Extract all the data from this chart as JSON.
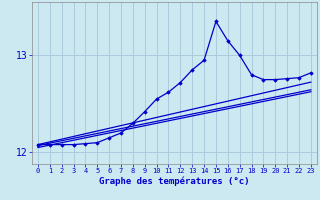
{
  "xlabel": "Graphe des températures (°c)",
  "background_color": "#cce8f0",
  "grid_color": "#aaccdd",
  "line_color": "#0000cc",
  "x_hours": [
    0,
    1,
    2,
    3,
    4,
    5,
    6,
    7,
    8,
    9,
    10,
    11,
    12,
    13,
    14,
    15,
    16,
    17,
    18,
    19,
    20,
    21,
    22,
    23
  ],
  "temp_data": [
    12.08,
    12.08,
    12.08,
    12.08,
    12.09,
    12.1,
    12.15,
    12.2,
    12.3,
    12.42,
    12.55,
    12.62,
    12.72,
    12.85,
    12.95,
    13.35,
    13.15,
    13.0,
    12.8,
    12.75,
    12.75,
    12.76,
    12.77,
    12.82
  ],
  "trend1": [
    12.05,
    12.075,
    12.1,
    12.125,
    12.15,
    12.175,
    12.2,
    12.225,
    12.25,
    12.275,
    12.3,
    12.325,
    12.35,
    12.375,
    12.4,
    12.425,
    12.45,
    12.475,
    12.5,
    12.525,
    12.55,
    12.575,
    12.6,
    12.625
  ],
  "trend2": [
    12.07,
    12.095,
    12.12,
    12.145,
    12.17,
    12.195,
    12.22,
    12.245,
    12.27,
    12.295,
    12.32,
    12.345,
    12.37,
    12.395,
    12.42,
    12.445,
    12.47,
    12.495,
    12.52,
    12.545,
    12.57,
    12.595,
    12.62,
    12.645
  ],
  "trend3": [
    12.08,
    12.108,
    12.136,
    12.164,
    12.192,
    12.22,
    12.248,
    12.276,
    12.304,
    12.332,
    12.36,
    12.388,
    12.416,
    12.444,
    12.472,
    12.5,
    12.528,
    12.556,
    12.584,
    12.612,
    12.64,
    12.668,
    12.696,
    12.724
  ],
  "ylim": [
    11.88,
    13.55
  ],
  "yticks": [
    12,
    13
  ],
  "xlim": [
    -0.5,
    23.5
  ]
}
